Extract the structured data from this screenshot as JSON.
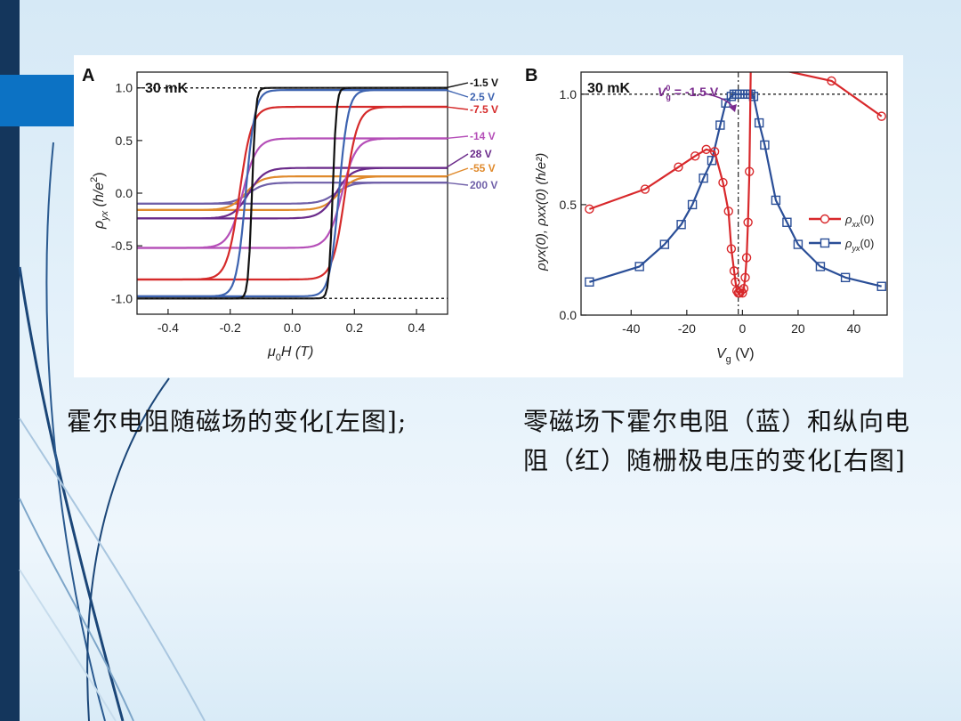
{
  "slide": {
    "caption_left": "霍尔电阻随磁场的变化[左图];",
    "caption_right": "零磁场下霍尔电阻（蓝）和纵向电阻（红）随栅极电压的变化[右图]"
  },
  "colors": {
    "sidebar_dark": "#14365c",
    "sidebar_accent": "#0c72c4",
    "curve_lines": "#1c3f6c",
    "rho_xx": "#d8282b",
    "rho_yx": "#2a4e97"
  },
  "chart_data": [
    {
      "panel_label": "A",
      "type": "line",
      "temperature": "30 mK",
      "xlabel_symbol": "μ",
      "xlabel_sub": "0",
      "xlabel_rest": "H (T)",
      "ylabel_symbol": "ρ",
      "ylabel_sub": "yx",
      "ylabel_rest": " (h/e",
      "ylabel_sup": "2",
      "ylabel_end": ")",
      "xlim": [
        -0.5,
        0.5
      ],
      "ylim": [
        -1.15,
        1.15
      ],
      "xticks": [
        "-0.4",
        "-0.2",
        "0.0",
        "0.2",
        "0.4"
      ],
      "xtick_values": [
        -0.4,
        -0.2,
        0.0,
        0.2,
        0.4
      ],
      "yticks": [
        "-1.0",
        "-0.5",
        "0.0",
        "0.5",
        "1.0"
      ],
      "ytick_values": [
        -1.0,
        -0.5,
        0.0,
        0.5,
        1.0
      ],
      "reference_lines": [
        1.0,
        -1.0
      ],
      "series": [
        {
          "name": "-1.5 V",
          "color": "#111111",
          "saturation": 1.0,
          "coercive_field": 0.13,
          "width": 0.012
        },
        {
          "name": "2.5 V",
          "color": "#3d63b0",
          "saturation": 0.98,
          "coercive_field": 0.15,
          "width": 0.03
        },
        {
          "name": "-7.5 V",
          "color": "#d52a2a",
          "saturation": 0.82,
          "coercive_field": 0.17,
          "width": 0.04
        },
        {
          "name": "-14 V",
          "color": "#b54fb8",
          "saturation": 0.52,
          "coercive_field": 0.16,
          "width": 0.045
        },
        {
          "name": "28 V",
          "color": "#6a2a8a",
          "saturation": 0.24,
          "coercive_field": 0.14,
          "width": 0.05
        },
        {
          "name": "-55 V",
          "color": "#e08a2c",
          "saturation": 0.16,
          "coercive_field": 0.15,
          "width": 0.05
        },
        {
          "name": "200 V",
          "color": "#6f5fa8",
          "saturation": 0.1,
          "coercive_field": 0.14,
          "width": 0.05
        }
      ]
    },
    {
      "panel_label": "B",
      "type": "line",
      "temperature": "30 mK",
      "annotation_symbol": "V",
      "annotation_sub": "g",
      "annotation_sup": "0",
      "annotation_value": " = -1.5 V",
      "xlabel_symbol": "V",
      "xlabel_sub": "g",
      "xlabel_rest": " (V)",
      "ylabel_text": "ρyx(0), ρxx(0) (h/e²)",
      "xlim": [
        -58,
        52
      ],
      "ylim": [
        0.0,
        1.1
      ],
      "xticks": [
        "-40",
        "-20",
        "0",
        "20",
        "40"
      ],
      "xtick_values": [
        -40,
        -20,
        0,
        20,
        40
      ],
      "yticks": [
        "0.0",
        "0.5",
        "1.0"
      ],
      "ytick_values": [
        0.0,
        0.5,
        1.0
      ],
      "reference_line": 1.0,
      "vertical_marker": -1.5,
      "series": [
        {
          "name": "ρxx(0)",
          "label_symbol": "ρ",
          "label_sub": "xx",
          "label_rest": "(0)",
          "color": "#d8282b",
          "marker": "circle",
          "x": [
            -55,
            -35,
            -23,
            -17,
            -13,
            -10,
            -7,
            -5,
            -4,
            -3,
            -2.5,
            -2,
            -1.5,
            -1,
            -0.5,
            0,
            0.5,
            1,
            1.5,
            2,
            2.5,
            3,
            32,
            50
          ],
          "y": [
            0.48,
            0.57,
            0.67,
            0.72,
            0.75,
            0.74,
            0.6,
            0.47,
            0.3,
            0.2,
            0.15,
            0.11,
            0.1,
            0.1,
            0.11,
            0.1,
            0.12,
            0.17,
            0.26,
            0.42,
            0.65,
            1.14,
            1.06,
            0.9
          ]
        },
        {
          "name": "ρyx(0)",
          "label_symbol": "ρ",
          "label_sub": "yx",
          "label_rest": "(0)",
          "color": "#2a4e97",
          "marker": "square",
          "x": [
            -55,
            -37,
            -28,
            -22,
            -18,
            -14,
            -11,
            -8,
            -6,
            -4,
            -3,
            -2,
            -1,
            0,
            1,
            2,
            3,
            4,
            6,
            8,
            12,
            16,
            20,
            28,
            37,
            50
          ],
          "y": [
            0.15,
            0.22,
            0.32,
            0.41,
            0.5,
            0.62,
            0.7,
            0.86,
            0.96,
            0.99,
            1.0,
            1.0,
            1.0,
            1.0,
            1.0,
            1.0,
            1.0,
            0.99,
            0.87,
            0.77,
            0.52,
            0.42,
            0.32,
            0.22,
            0.17,
            0.13
          ]
        }
      ]
    }
  ]
}
